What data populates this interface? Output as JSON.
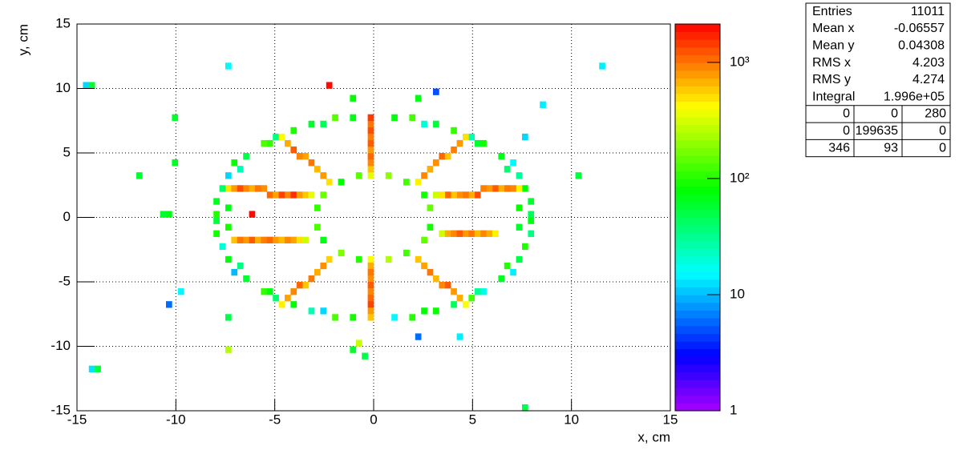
{
  "chart_data": {
    "type": "heatmap",
    "x_label": "x, cm",
    "y_label": "y, cm",
    "xlim": [
      -15,
      15
    ],
    "ylim": [
      -15,
      15
    ],
    "xticks": [
      -15,
      -10,
      -5,
      0,
      5,
      10,
      15
    ],
    "yticks": [
      -15,
      -10,
      -5,
      0,
      5,
      10,
      15
    ],
    "grid": true,
    "log_z": true,
    "zlim": [
      1,
      2140
    ],
    "zticks": [
      1,
      10,
      {
        "value": 100,
        "label": "10²"
      },
      {
        "value": 1000,
        "label": "10³"
      }
    ],
    "cells": [
      [
        7.95,
        0.25,
        45
      ],
      [
        7.95,
        1.25,
        60
      ],
      [
        7.65,
        2.25,
        80
      ],
      [
        7.35,
        3.25,
        30
      ],
      [
        7.05,
        4.25,
        15
      ],
      [
        6.45,
        4.75,
        70
      ],
      [
        5.55,
        5.75,
        90
      ],
      [
        4.95,
        6.25,
        25
      ],
      [
        4.05,
        6.75,
        110
      ],
      [
        3.15,
        7.25,
        55
      ],
      [
        1.95,
        7.75,
        120
      ],
      [
        1.05,
        7.75,
        75
      ],
      [
        -7.95,
        0.25,
        100
      ],
      [
        -7.95,
        1.25,
        65
      ],
      [
        -7.65,
        2.25,
        40
      ],
      [
        -7.35,
        3.25,
        12
      ],
      [
        -7.05,
        4.25,
        85
      ],
      [
        -6.45,
        4.75,
        50
      ],
      [
        -5.55,
        5.75,
        130
      ],
      [
        -4.95,
        6.25,
        35
      ],
      [
        -4.05,
        6.75,
        95
      ],
      [
        -3.15,
        7.25,
        60
      ],
      [
        -1.95,
        7.75,
        140
      ],
      [
        -1.05,
        7.75,
        70
      ],
      [
        -7.95,
        -0.25,
        55
      ],
      [
        -7.95,
        -1.25,
        90
      ],
      [
        -7.65,
        -2.25,
        20
      ],
      [
        -7.35,
        -3.25,
        75
      ],
      [
        -7.05,
        -4.25,
        10
      ],
      [
        -6.45,
        -4.75,
        60
      ],
      [
        -5.55,
        -5.75,
        110
      ],
      [
        -4.95,
        -6.25,
        40
      ],
      [
        -4.05,
        -6.75,
        80
      ],
      [
        -3.15,
        -7.25,
        25
      ],
      [
        -1.95,
        -7.75,
        130
      ],
      [
        -1.05,
        -7.75,
        90
      ],
      [
        7.95,
        -0.25,
        70
      ],
      [
        7.95,
        -1.25,
        35
      ],
      [
        7.65,
        -2.25,
        95
      ],
      [
        7.35,
        -3.25,
        50
      ],
      [
        7.05,
        -4.25,
        14
      ],
      [
        6.45,
        -4.75,
        65
      ],
      [
        5.55,
        -5.75,
        18
      ],
      [
        4.95,
        -6.25,
        120
      ],
      [
        4.05,
        -6.75,
        45
      ],
      [
        3.15,
        -7.25,
        85
      ],
      [
        1.95,
        -7.75,
        100
      ],
      [
        1.05,
        -7.75,
        15
      ],
      [
        7.35,
        0.75,
        85
      ],
      [
        6.75,
        3.75,
        40
      ],
      [
        5.25,
        5.75,
        60
      ],
      [
        2.55,
        7.25,
        20
      ],
      [
        -7.35,
        0.75,
        70
      ],
      [
        -6.75,
        3.75,
        25
      ],
      [
        -5.25,
        5.75,
        110
      ],
      [
        -2.55,
        7.25,
        45
      ],
      [
        -7.35,
        -0.75,
        90
      ],
      [
        -6.75,
        -3.75,
        35
      ],
      [
        -5.25,
        -5.75,
        75
      ],
      [
        -2.55,
        -7.25,
        12
      ],
      [
        7.35,
        -0.75,
        60
      ],
      [
        6.75,
        -3.75,
        100
      ],
      [
        5.25,
        -5.75,
        30
      ],
      [
        2.55,
        -7.25,
        80
      ],
      [
        2.85,
        0.75,
        150
      ],
      [
        2.55,
        1.75,
        90
      ],
      [
        1.65,
        2.75,
        120
      ],
      [
        0.75,
        3.25,
        200
      ],
      [
        -2.85,
        0.75,
        110
      ],
      [
        -2.55,
        1.75,
        160
      ],
      [
        -1.65,
        2.75,
        80
      ],
      [
        -0.75,
        3.25,
        140
      ],
      [
        -2.85,
        -0.75,
        130
      ],
      [
        -2.55,
        -1.75,
        70
      ],
      [
        -1.65,
        -2.75,
        180
      ],
      [
        -0.75,
        -3.25,
        100
      ],
      [
        2.85,
        -0.75,
        90
      ],
      [
        2.55,
        -1.75,
        150
      ],
      [
        1.65,
        -2.75,
        120
      ],
      [
        0.75,
        -3.25,
        250
      ],
      [
        -0.15,
        3.25,
        350
      ],
      [
        -0.15,
        3.75,
        600
      ],
      [
        -0.15,
        4.25,
        900
      ],
      [
        -0.15,
        4.75,
        1100
      ],
      [
        -0.15,
        5.25,
        800
      ],
      [
        -0.15,
        5.75,
        1200
      ],
      [
        -0.15,
        6.25,
        950
      ],
      [
        -0.15,
        6.75,
        1300
      ],
      [
        -0.15,
        7.25,
        1000
      ],
      [
        -0.15,
        7.75,
        1500
      ],
      [
        -0.15,
        -3.25,
        400
      ],
      [
        -0.15,
        -3.75,
        700
      ],
      [
        -0.15,
        -4.25,
        1000
      ],
      [
        -0.15,
        -4.75,
        850
      ],
      [
        -0.15,
        -5.25,
        1200
      ],
      [
        -0.15,
        -5.75,
        900
      ],
      [
        -0.15,
        -6.25,
        1100
      ],
      [
        -0.15,
        -6.75,
        1400
      ],
      [
        -0.15,
        -7.25,
        800
      ],
      [
        -0.15,
        -7.75,
        600
      ],
      [
        -2.25,
        2.75,
        500
      ],
      [
        -2.55,
        3.25,
        800
      ],
      [
        -2.85,
        3.75,
        650
      ],
      [
        -3.15,
        4.25,
        1000
      ],
      [
        -3.45,
        4.75,
        750
      ],
      [
        -3.75,
        4.75,
        900
      ],
      [
        -4.05,
        5.25,
        1200
      ],
      [
        -4.35,
        5.75,
        700
      ],
      [
        -4.65,
        6.25,
        400
      ],
      [
        2.25,
        2.75,
        450
      ],
      [
        2.55,
        3.25,
        900
      ],
      [
        2.85,
        3.75,
        700
      ],
      [
        3.15,
        4.25,
        850
      ],
      [
        3.45,
        4.75,
        1100
      ],
      [
        3.75,
        4.75,
        600
      ],
      [
        4.05,
        5.25,
        950
      ],
      [
        4.35,
        5.75,
        800
      ],
      [
        4.65,
        6.25,
        500
      ],
      [
        -2.25,
        -3.25,
        550
      ],
      [
        -2.55,
        -3.75,
        850
      ],
      [
        -2.85,
        -4.25,
        700
      ],
      [
        -3.15,
        -4.75,
        1000
      ],
      [
        -3.45,
        -5.25,
        600
      ],
      [
        -3.75,
        -5.25,
        1100
      ],
      [
        -4.05,
        -5.75,
        900
      ],
      [
        -4.35,
        -6.25,
        750
      ],
      [
        -4.65,
        -6.75,
        450
      ],
      [
        2.25,
        -3.25,
        600
      ],
      [
        2.55,
        -3.75,
        750
      ],
      [
        2.85,
        -4.25,
        1000
      ],
      [
        3.15,
        -4.75,
        650
      ],
      [
        3.45,
        -5.25,
        900
      ],
      [
        3.75,
        -5.25,
        1200
      ],
      [
        4.05,
        -5.75,
        800
      ],
      [
        4.35,
        -6.25,
        700
      ],
      [
        4.65,
        -6.75,
        400
      ],
      [
        -7.35,
        2.25,
        500
      ],
      [
        -7.05,
        2.25,
        800
      ],
      [
        -6.75,
        2.25,
        1300
      ],
      [
        -6.45,
        2.25,
        900
      ],
      [
        -6.15,
        2.25,
        700
      ],
      [
        -5.85,
        2.25,
        1000
      ],
      [
        -5.55,
        2.25,
        850
      ],
      [
        -5.25,
        1.75,
        1100
      ],
      [
        -4.95,
        1.75,
        750
      ],
      [
        -4.65,
        1.75,
        1400
      ],
      [
        -4.35,
        1.75,
        900
      ],
      [
        -4.05,
        1.75,
        1600
      ],
      [
        -3.75,
        1.75,
        800
      ],
      [
        -3.45,
        1.75,
        600
      ],
      [
        -3.15,
        1.75,
        350
      ],
      [
        7.35,
        2.25,
        450
      ],
      [
        7.05,
        2.25,
        900
      ],
      [
        6.75,
        2.25,
        1000
      ],
      [
        6.45,
        2.25,
        700
      ],
      [
        6.15,
        2.25,
        1200
      ],
      [
        5.85,
        2.25,
        800
      ],
      [
        5.55,
        2.25,
        950
      ],
      [
        5.25,
        1.75,
        1300
      ],
      [
        4.95,
        1.75,
        700
      ],
      [
        4.65,
        1.75,
        1000
      ],
      [
        4.35,
        1.75,
        850
      ],
      [
        4.05,
        1.75,
        600
      ],
      [
        3.75,
        1.75,
        1100
      ],
      [
        3.45,
        1.75,
        500
      ],
      [
        3.15,
        1.75,
        300
      ],
      [
        -7.05,
        -1.75,
        600
      ],
      [
        -6.75,
        -1.75,
        1000
      ],
      [
        -6.45,
        -1.75,
        800
      ],
      [
        -6.15,
        -1.75,
        1200
      ],
      [
        -5.85,
        -1.75,
        700
      ],
      [
        -5.55,
        -1.75,
        950
      ],
      [
        -5.25,
        -1.75,
        1100
      ],
      [
        -4.95,
        -1.75,
        800
      ],
      [
        -4.65,
        -1.75,
        650
      ],
      [
        -4.35,
        -1.75,
        900
      ],
      [
        -4.05,
        -1.75,
        750
      ],
      [
        -3.75,
        -1.75,
        500
      ],
      [
        -3.45,
        -1.75,
        300
      ],
      [
        3.45,
        -1.25,
        300
      ],
      [
        3.75,
        -1.25,
        700
      ],
      [
        4.05,
        -1.25,
        900
      ],
      [
        4.35,
        -1.25,
        1200
      ],
      [
        4.65,
        -1.25,
        800
      ],
      [
        4.95,
        -1.25,
        1000
      ],
      [
        5.25,
        -1.25,
        650
      ],
      [
        5.55,
        -1.25,
        900
      ],
      [
        5.85,
        -1.25,
        700
      ],
      [
        6.15,
        -1.25,
        450
      ],
      [
        -14.55,
        10.25,
        12
      ],
      [
        -14.25,
        10.25,
        60
      ],
      [
        -7.35,
        11.75,
        15
      ],
      [
        11.55,
        11.75,
        14
      ],
      [
        -2.25,
        10.25,
        2000
      ],
      [
        -14.25,
        -11.75,
        13
      ],
      [
        -13.95,
        -11.75,
        55
      ],
      [
        7.65,
        -14.75,
        50
      ],
      [
        -7.35,
        -10.25,
        250
      ],
      [
        -0.75,
        -9.75,
        280
      ],
      [
        -1.05,
        -10.25,
        60
      ],
      [
        -0.45,
        -10.75,
        50
      ],
      [
        2.25,
        -9.25,
        6
      ],
      [
        4.35,
        -9.25,
        14
      ],
      [
        -6.15,
        0.25,
        2000
      ],
      [
        -10.35,
        0.25,
        70
      ],
      [
        -10.65,
        0.25,
        60
      ],
      [
        -11.85,
        3.25,
        60
      ],
      [
        10.35,
        3.25,
        55
      ],
      [
        -10.05,
        4.25,
        65
      ],
      [
        3.15,
        9.75,
        5
      ],
      [
        2.25,
        9.25,
        70
      ],
      [
        -1.05,
        9.25,
        80
      ],
      [
        8.55,
        8.75,
        14
      ],
      [
        -10.05,
        7.75,
        60
      ],
      [
        7.65,
        6.25,
        12
      ],
      [
        -9.75,
        -5.75,
        15
      ],
      [
        -10.35,
        -6.75,
        6
      ],
      [
        -7.35,
        -7.75,
        50
      ]
    ],
    "stats": {
      "rows": [
        [
          "Entries",
          "11011"
        ],
        [
          "Mean x",
          "-0.06557"
        ],
        [
          "Mean y",
          "0.04308"
        ],
        [
          "RMS x",
          "4.203"
        ],
        [
          "RMS y",
          "4.274"
        ],
        [
          "Integral",
          "1.996e+05"
        ]
      ],
      "overflow": [
        [
          "0",
          "0",
          "280"
        ],
        [
          "0",
          "199635",
          "0"
        ],
        [
          "346",
          "93",
          "0"
        ]
      ]
    }
  }
}
